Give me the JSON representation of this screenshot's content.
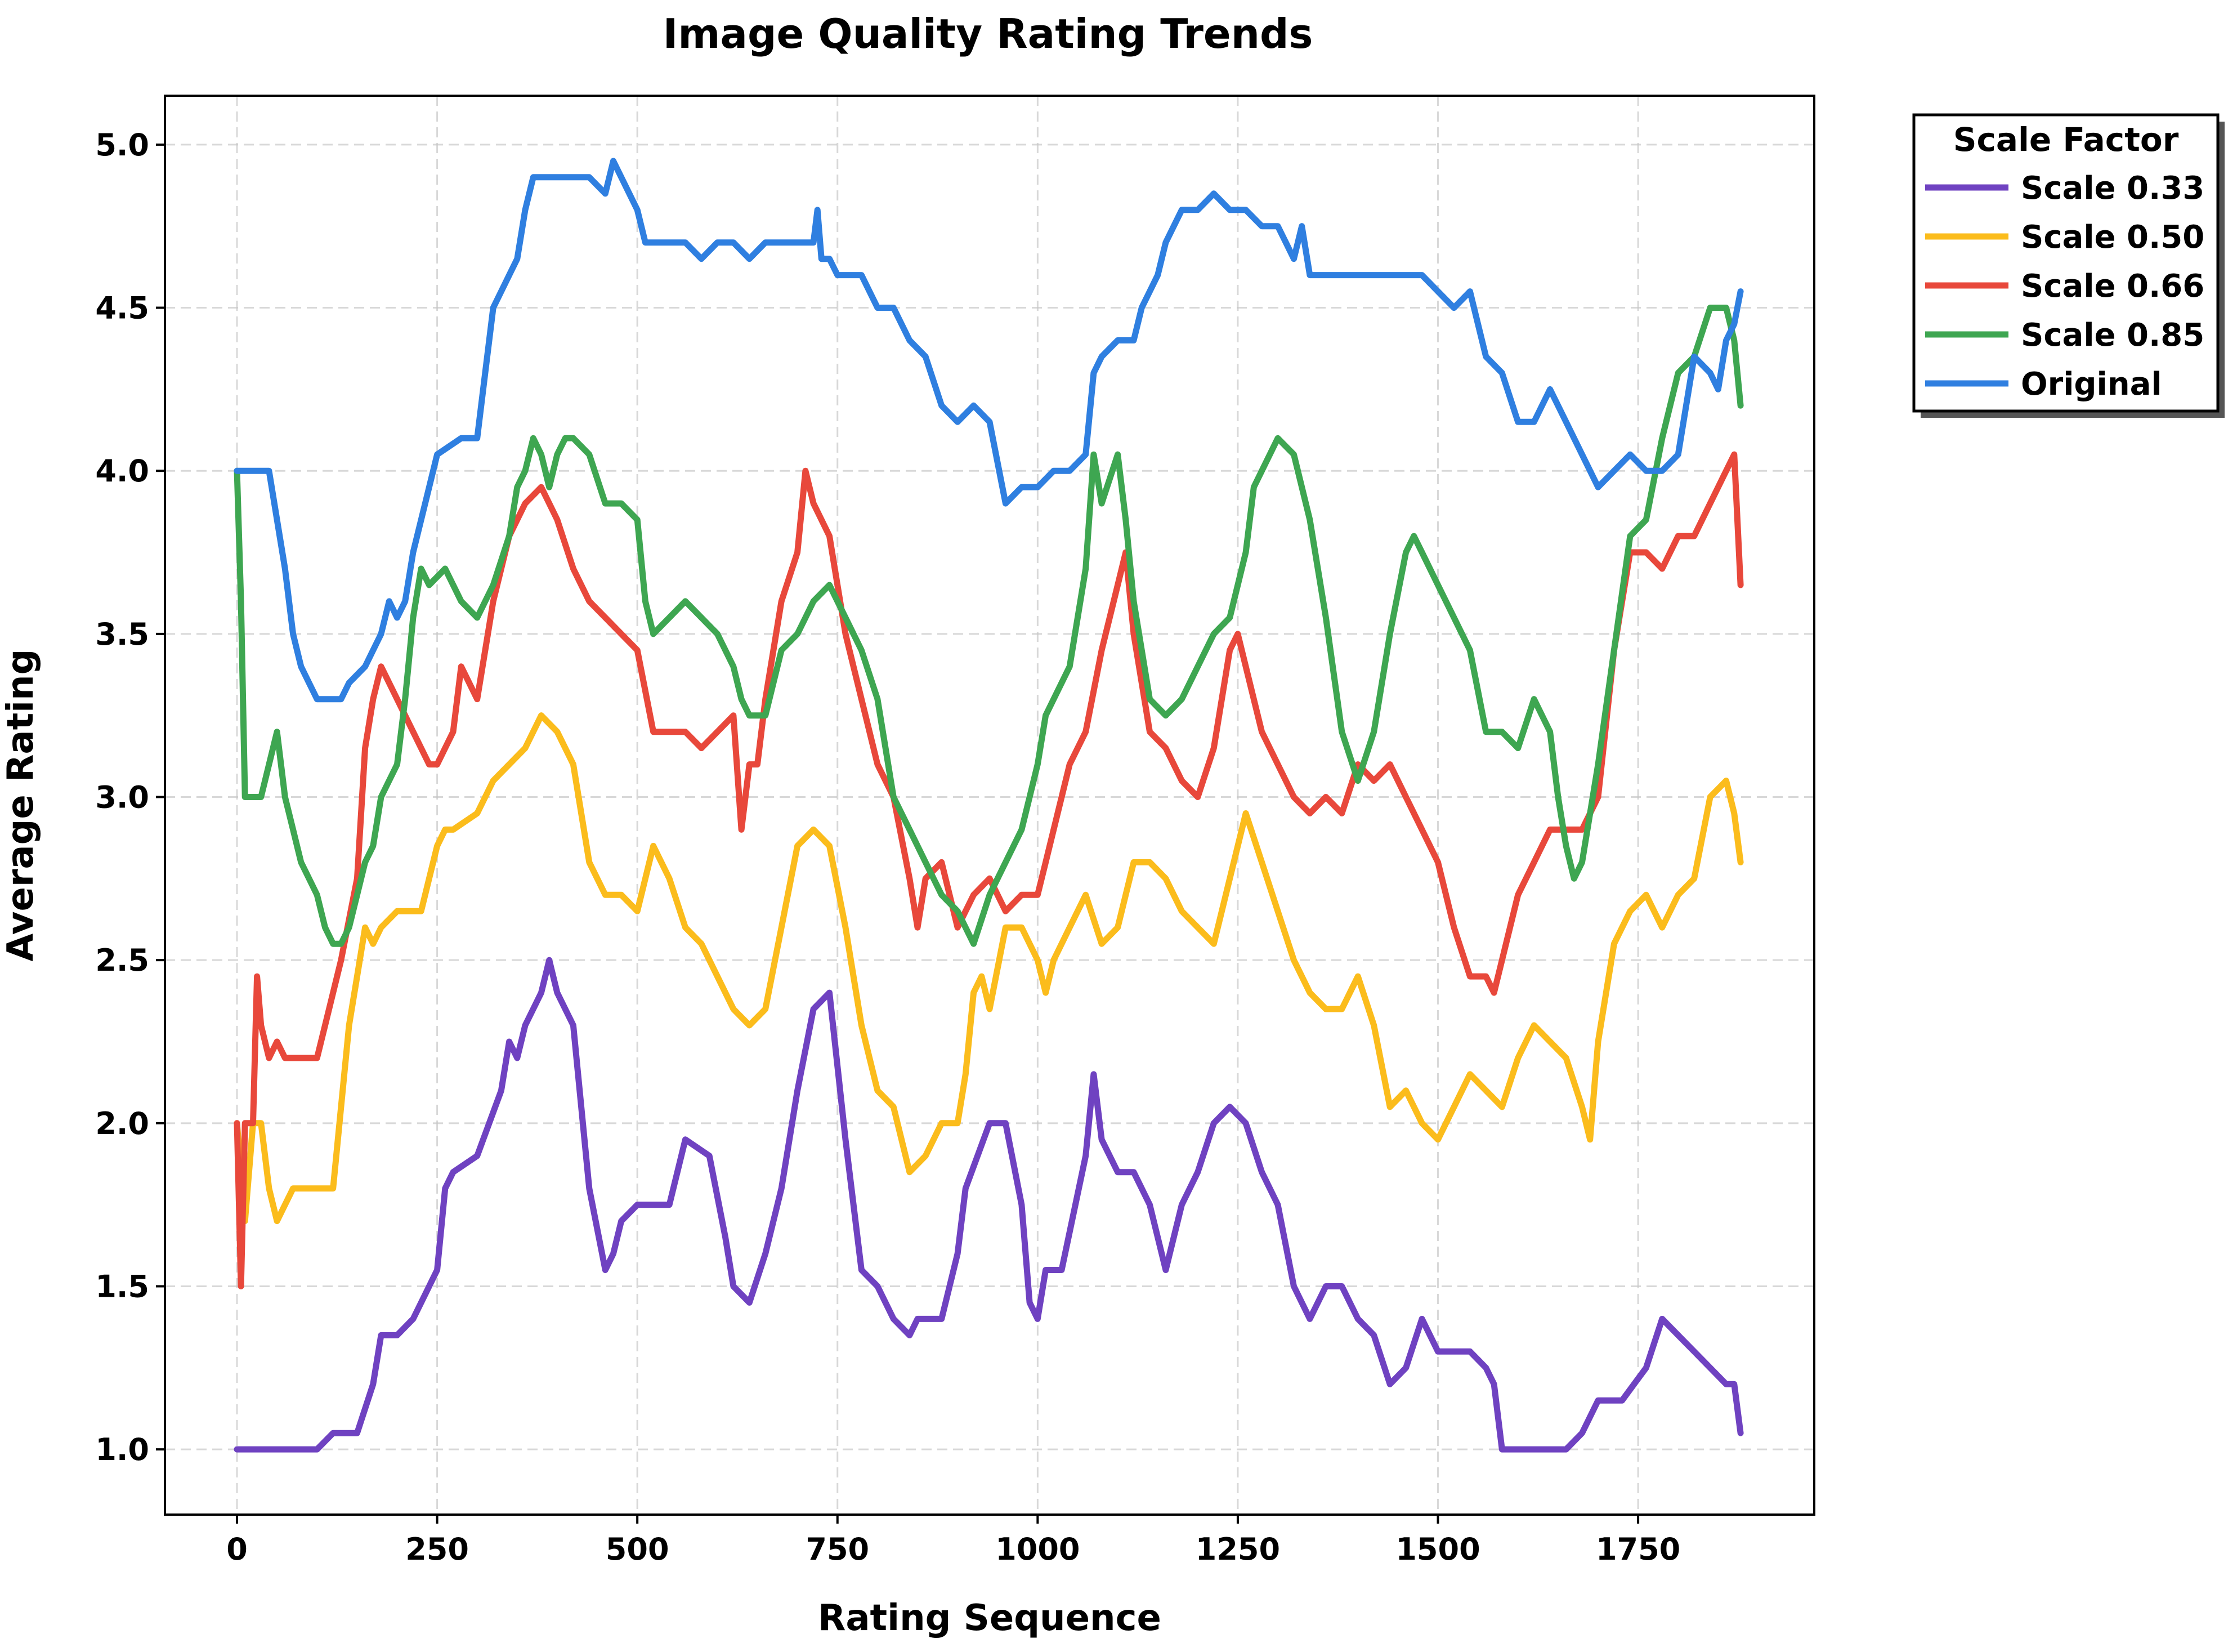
{
  "chart_data": {
    "type": "line",
    "title": "Image Quality Rating Trends",
    "xlabel": "Rating Sequence",
    "ylabel": "Average Rating",
    "xlim": [
      -90,
      1970
    ],
    "ylim": [
      0.8,
      5.15
    ],
    "xticks": [
      0,
      250,
      500,
      750,
      1000,
      1250,
      1500,
      1750
    ],
    "yticks": [
      1.0,
      1.5,
      2.0,
      2.5,
      3.0,
      3.5,
      4.0,
      4.5,
      5.0
    ],
    "grid": true,
    "legend": {
      "title": "Scale Factor",
      "placement": "outside-top-right"
    },
    "series": [
      {
        "name": "Scale 0.33",
        "color": "#6f42c1",
        "x": [
          0,
          50,
          100,
          120,
          150,
          170,
          180,
          200,
          220,
          240,
          250,
          260,
          270,
          300,
          330,
          340,
          350,
          360,
          380,
          390,
          400,
          420,
          440,
          460,
          470,
          480,
          500,
          540,
          560,
          590,
          610,
          620,
          640,
          660,
          680,
          700,
          720,
          740,
          760,
          780,
          800,
          820,
          840,
          850,
          880,
          900,
          910,
          940,
          960,
          980,
          990,
          1000,
          1010,
          1030,
          1060,
          1070,
          1080,
          1100,
          1120,
          1140,
          1160,
          1180,
          1200,
          1220,
          1240,
          1260,
          1280,
          1300,
          1320,
          1340,
          1360,
          1380,
          1400,
          1420,
          1440,
          1460,
          1480,
          1500,
          1540,
          1560,
          1570,
          1580,
          1600,
          1640,
          1660,
          1680,
          1700,
          1730,
          1760,
          1780,
          1800,
          1820,
          1840,
          1860,
          1870,
          1878
        ],
        "values": [
          1.0,
          1.0,
          1.0,
          1.05,
          1.05,
          1.2,
          1.35,
          1.35,
          1.4,
          1.5,
          1.55,
          1.8,
          1.85,
          1.9,
          2.1,
          2.25,
          2.2,
          2.3,
          2.4,
          2.5,
          2.4,
          2.3,
          1.8,
          1.55,
          1.6,
          1.7,
          1.75,
          1.75,
          1.95,
          1.9,
          1.65,
          1.5,
          1.45,
          1.6,
          1.8,
          2.1,
          2.35,
          2.4,
          1.95,
          1.55,
          1.5,
          1.4,
          1.35,
          1.4,
          1.4,
          1.6,
          1.8,
          2.0,
          2.0,
          1.75,
          1.45,
          1.4,
          1.55,
          1.55,
          1.9,
          2.15,
          1.95,
          1.85,
          1.85,
          1.75,
          1.55,
          1.75,
          1.85,
          2.0,
          2.05,
          2.0,
          1.85,
          1.75,
          1.5,
          1.4,
          1.5,
          1.5,
          1.4,
          1.35,
          1.2,
          1.25,
          1.4,
          1.3,
          1.3,
          1.25,
          1.2,
          1.0,
          1.0,
          1.0,
          1.0,
          1.05,
          1.15,
          1.15,
          1.25,
          1.4,
          1.35,
          1.3,
          1.25,
          1.2,
          1.2,
          1.05
        ]
      },
      {
        "name": "Scale 0.50",
        "color": "#fbbc1c",
        "x": [
          0,
          10,
          20,
          30,
          40,
          50,
          60,
          70,
          80,
          100,
          120,
          140,
          150,
          160,
          170,
          180,
          200,
          230,
          250,
          260,
          270,
          300,
          320,
          340,
          360,
          380,
          400,
          420,
          440,
          460,
          480,
          500,
          520,
          540,
          560,
          580,
          600,
          620,
          640,
          660,
          680,
          700,
          720,
          740,
          760,
          780,
          800,
          820,
          840,
          860,
          880,
          900,
          910,
          920,
          930,
          940,
          960,
          980,
          1000,
          1010,
          1020,
          1040,
          1060,
          1080,
          1100,
          1120,
          1140,
          1160,
          1180,
          1200,
          1220,
          1240,
          1260,
          1280,
          1300,
          1320,
          1340,
          1360,
          1380,
          1400,
          1420,
          1440,
          1460,
          1480,
          1500,
          1520,
          1540,
          1560,
          1580,
          1600,
          1620,
          1640,
          1660,
          1680,
          1690,
          1700,
          1720,
          1740,
          1760,
          1780,
          1800,
          1820,
          1840,
          1860,
          1870,
          1878
        ],
        "values": [
          2.0,
          1.7,
          2.0,
          2.0,
          1.8,
          1.7,
          1.75,
          1.8,
          1.8,
          1.8,
          1.8,
          2.3,
          2.45,
          2.6,
          2.55,
          2.6,
          2.65,
          2.65,
          2.85,
          2.9,
          2.9,
          2.95,
          3.05,
          3.1,
          3.15,
          3.25,
          3.2,
          3.1,
          2.8,
          2.7,
          2.7,
          2.65,
          2.85,
          2.75,
          2.6,
          2.55,
          2.45,
          2.35,
          2.3,
          2.35,
          2.6,
          2.85,
          2.9,
          2.85,
          2.6,
          2.3,
          2.1,
          2.05,
          1.85,
          1.9,
          2.0,
          2.0,
          2.15,
          2.4,
          2.45,
          2.35,
          2.6,
          2.6,
          2.5,
          2.4,
          2.5,
          2.6,
          2.7,
          2.55,
          2.6,
          2.8,
          2.8,
          2.75,
          2.65,
          2.6,
          2.55,
          2.75,
          2.95,
          2.8,
          2.65,
          2.5,
          2.4,
          2.35,
          2.35,
          2.45,
          2.3,
          2.05,
          2.1,
          2.0,
          1.95,
          2.05,
          2.15,
          2.1,
          2.05,
          2.2,
          2.3,
          2.25,
          2.2,
          2.05,
          1.95,
          2.25,
          2.55,
          2.65,
          2.7,
          2.6,
          2.7,
          2.75,
          3.0,
          3.05,
          2.95,
          2.8
        ]
      },
      {
        "name": "Scale 0.66",
        "color": "#e8483b",
        "x": [
          0,
          5,
          10,
          20,
          25,
          30,
          40,
          50,
          60,
          70,
          80,
          100,
          110,
          120,
          130,
          150,
          160,
          170,
          180,
          190,
          200,
          220,
          240,
          250,
          260,
          270,
          280,
          300,
          320,
          340,
          360,
          380,
          390,
          400,
          420,
          440,
          460,
          480,
          500,
          520,
          540,
          560,
          580,
          600,
          620,
          630,
          640,
          650,
          660,
          680,
          700,
          710,
          720,
          740,
          760,
          780,
          800,
          820,
          840,
          850,
          860,
          880,
          900,
          920,
          940,
          960,
          980,
          1000,
          1010,
          1020,
          1040,
          1060,
          1080,
          1100,
          1110,
          1120,
          1140,
          1160,
          1180,
          1200,
          1220,
          1240,
          1250,
          1260,
          1280,
          1300,
          1320,
          1340,
          1360,
          1380,
          1400,
          1420,
          1440,
          1460,
          1480,
          1500,
          1520,
          1540,
          1560,
          1570,
          1580,
          1600,
          1620,
          1640,
          1660,
          1680,
          1700,
          1720,
          1740,
          1760,
          1780,
          1800,
          1820,
          1840,
          1860,
          1870,
          1878
        ],
        "values": [
          2.0,
          1.5,
          2.0,
          2.0,
          2.45,
          2.3,
          2.2,
          2.25,
          2.2,
          2.2,
          2.2,
          2.2,
          2.3,
          2.4,
          2.5,
          2.75,
          3.15,
          3.3,
          3.4,
          3.35,
          3.3,
          3.2,
          3.1,
          3.1,
          3.15,
          3.2,
          3.4,
          3.3,
          3.6,
          3.8,
          3.9,
          3.95,
          3.9,
          3.85,
          3.7,
          3.6,
          3.55,
          3.5,
          3.45,
          3.2,
          3.2,
          3.2,
          3.15,
          3.2,
          3.25,
          2.9,
          3.1,
          3.1,
          3.3,
          3.6,
          3.75,
          4.0,
          3.9,
          3.8,
          3.5,
          3.3,
          3.1,
          3.0,
          2.75,
          2.6,
          2.75,
          2.8,
          2.6,
          2.7,
          2.75,
          2.65,
          2.7,
          2.7,
          2.8,
          2.9,
          3.1,
          3.2,
          3.45,
          3.65,
          3.75,
          3.5,
          3.2,
          3.15,
          3.05,
          3.0,
          3.15,
          3.45,
          3.5,
          3.4,
          3.2,
          3.1,
          3.0,
          2.95,
          3.0,
          2.95,
          3.1,
          3.05,
          3.1,
          3.0,
          2.9,
          2.8,
          2.6,
          2.45,
          2.45,
          2.4,
          2.5,
          2.7,
          2.8,
          2.9,
          2.9,
          2.9,
          3.0,
          3.45,
          3.75,
          3.75,
          3.7,
          3.8,
          3.8,
          3.9,
          4.0,
          4.05,
          3.65
        ]
      },
      {
        "name": "Scale 0.85",
        "color": "#3ea651",
        "x": [
          0,
          5,
          10,
          20,
          30,
          40,
          50,
          60,
          70,
          80,
          90,
          100,
          110,
          120,
          130,
          140,
          150,
          160,
          170,
          180,
          200,
          210,
          220,
          230,
          240,
          260,
          280,
          300,
          320,
          340,
          350,
          360,
          370,
          380,
          390,
          400,
          410,
          420,
          440,
          460,
          480,
          500,
          510,
          520,
          540,
          560,
          580,
          600,
          620,
          630,
          640,
          660,
          680,
          700,
          710,
          720,
          740,
          760,
          780,
          800,
          820,
          840,
          860,
          880,
          900,
          910,
          920,
          940,
          960,
          980,
          1000,
          1010,
          1020,
          1040,
          1060,
          1070,
          1080,
          1100,
          1110,
          1120,
          1140,
          1160,
          1180,
          1200,
          1220,
          1240,
          1260,
          1270,
          1280,
          1300,
          1320,
          1340,
          1360,
          1380,
          1400,
          1420,
          1440,
          1460,
          1470,
          1480,
          1500,
          1520,
          1540,
          1560,
          1580,
          1600,
          1620,
          1640,
          1650,
          1660,
          1670,
          1680,
          1700,
          1720,
          1740,
          1760,
          1780,
          1800,
          1820,
          1840,
          1860,
          1870,
          1878
        ],
        "values": [
          4.0,
          3.6,
          3.0,
          3.0,
          3.0,
          3.1,
          3.2,
          3.0,
          2.9,
          2.8,
          2.75,
          2.7,
          2.6,
          2.55,
          2.55,
          2.6,
          2.7,
          2.8,
          2.85,
          3.0,
          3.1,
          3.3,
          3.55,
          3.7,
          3.65,
          3.7,
          3.6,
          3.55,
          3.65,
          3.8,
          3.95,
          4.0,
          4.1,
          4.05,
          3.95,
          4.05,
          4.1,
          4.1,
          4.05,
          3.9,
          3.9,
          3.85,
          3.6,
          3.5,
          3.55,
          3.6,
          3.55,
          3.5,
          3.4,
          3.3,
          3.25,
          3.25,
          3.45,
          3.5,
          3.55,
          3.6,
          3.65,
          3.55,
          3.45,
          3.3,
          3.0,
          2.9,
          2.8,
          2.7,
          2.65,
          2.6,
          2.55,
          2.7,
          2.8,
          2.9,
          3.1,
          3.25,
          3.3,
          3.4,
          3.7,
          4.05,
          3.9,
          4.05,
          3.85,
          3.6,
          3.3,
          3.25,
          3.3,
          3.4,
          3.5,
          3.55,
          3.75,
          3.95,
          4.0,
          4.1,
          4.05,
          3.85,
          3.55,
          3.2,
          3.05,
          3.2,
          3.5,
          3.75,
          3.8,
          3.75,
          3.65,
          3.55,
          3.45,
          3.2,
          3.2,
          3.15,
          3.3,
          3.2,
          3.0,
          2.85,
          2.75,
          2.8,
          3.1,
          3.45,
          3.8,
          3.85,
          4.1,
          4.3,
          4.35,
          4.5,
          4.5,
          4.4,
          4.2
        ]
      },
      {
        "name": "Original",
        "color": "#2f7fe0",
        "x": [
          0,
          20,
          40,
          60,
          70,
          80,
          90,
          100,
          110,
          120,
          130,
          140,
          160,
          170,
          180,
          190,
          200,
          210,
          220,
          240,
          250,
          280,
          300,
          310,
          320,
          330,
          340,
          350,
          360,
          370,
          380,
          420,
          440,
          460,
          470,
          480,
          500,
          510,
          520,
          540,
          560,
          580,
          600,
          620,
          640,
          660,
          680,
          700,
          720,
          725,
          730,
          740,
          750,
          760,
          780,
          800,
          820,
          840,
          860,
          880,
          900,
          920,
          940,
          960,
          980,
          1000,
          1020,
          1040,
          1060,
          1070,
          1080,
          1100,
          1120,
          1130,
          1140,
          1150,
          1160,
          1180,
          1200,
          1220,
          1240,
          1260,
          1280,
          1300,
          1310,
          1320,
          1330,
          1340,
          1360,
          1380,
          1400,
          1420,
          1440,
          1460,
          1480,
          1500,
          1520,
          1540,
          1560,
          1580,
          1600,
          1620,
          1640,
          1660,
          1680,
          1700,
          1720,
          1740,
          1760,
          1780,
          1800,
          1820,
          1840,
          1850,
          1860,
          1870,
          1878
        ],
        "values": [
          4.0,
          4.0,
          4.0,
          3.7,
          3.5,
          3.4,
          3.35,
          3.3,
          3.3,
          3.3,
          3.3,
          3.35,
          3.4,
          3.45,
          3.5,
          3.6,
          3.55,
          3.6,
          3.75,
          3.95,
          4.05,
          4.1,
          4.1,
          4.3,
          4.5,
          4.55,
          4.6,
          4.65,
          4.8,
          4.9,
          4.9,
          4.9,
          4.9,
          4.85,
          4.95,
          4.9,
          4.8,
          4.7,
          4.7,
          4.7,
          4.7,
          4.65,
          4.7,
          4.7,
          4.65,
          4.7,
          4.7,
          4.7,
          4.7,
          4.8,
          4.65,
          4.65,
          4.6,
          4.6,
          4.6,
          4.5,
          4.5,
          4.4,
          4.35,
          4.2,
          4.15,
          4.2,
          4.15,
          3.9,
          3.95,
          3.95,
          4.0,
          4.0,
          4.05,
          4.3,
          4.35,
          4.4,
          4.4,
          4.5,
          4.55,
          4.6,
          4.7,
          4.8,
          4.8,
          4.85,
          4.8,
          4.8,
          4.75,
          4.75,
          4.7,
          4.65,
          4.75,
          4.6,
          4.6,
          4.6,
          4.6,
          4.6,
          4.6,
          4.6,
          4.6,
          4.55,
          4.5,
          4.55,
          4.35,
          4.3,
          4.15,
          4.15,
          4.25,
          4.15,
          4.05,
          3.95,
          4.0,
          4.05,
          4.0,
          4.0,
          4.05,
          4.35,
          4.3,
          4.25,
          4.4,
          4.45,
          4.55
        ]
      }
    ]
  }
}
